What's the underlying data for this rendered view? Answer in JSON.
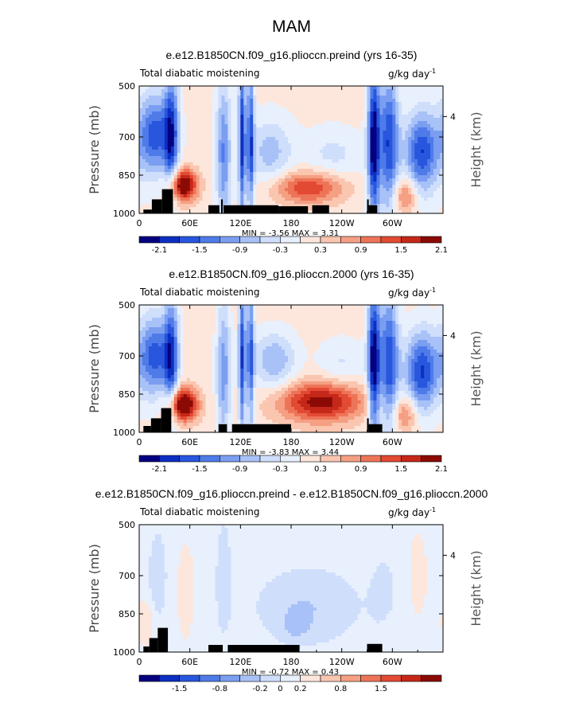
{
  "figure_title": "MAM",
  "chart_data": [
    {
      "type": "heatmap",
      "title": "e.e12.B1850CN.f09_g16.plioccn.preind (yrs 16-35)",
      "subtitle_left": "Total diabatic moistening",
      "units": "g/kg day",
      "units_exp": "-1",
      "ylabel": "Pressure (mb)",
      "ylabel_right": "Height (km)",
      "right_tick_labels": [
        "4"
      ],
      "x_tick_labels": [
        "0",
        "60E",
        "120E",
        "180",
        "120W",
        "60W"
      ],
      "y_tick_labels": [
        "500",
        "700",
        "850",
        "1000"
      ],
      "ylim": [
        1000,
        500
      ],
      "xlim": [
        0,
        360
      ],
      "min_max_text": "MIN =   -3.56   MAX =    3.31",
      "colorbar_labels": [
        "-2.1",
        "-1.5",
        "-0.9",
        "-0.3",
        "0.3",
        "0.9",
        "1.5",
        "2.1"
      ],
      "colorbar_colors": [
        "#05007f",
        "#0d2fc1",
        "#2856dd",
        "#4f7be9",
        "#7b9ef1",
        "#a8c2f8",
        "#cfdefb",
        "#e8f0fd",
        "#fde6dc",
        "#fac6b0",
        "#f59f83",
        "#ee7458",
        "#e24a34",
        "#c52818",
        "#8b0a06"
      ],
      "max_abs": 2.4
    },
    {
      "type": "heatmap",
      "title": "e.e12.B1850CN.f09_g16.plioccn.2000 (yrs 16-35)",
      "subtitle_left": "Total diabatic moistening",
      "units": "g/kg day",
      "units_exp": "-1",
      "ylabel": "Pressure (mb)",
      "ylabel_right": "Height (km)",
      "right_tick_labels": [
        "4"
      ],
      "x_tick_labels": [
        "0",
        "60E",
        "120E",
        "180",
        "120W",
        "60W"
      ],
      "y_tick_labels": [
        "500",
        "700",
        "850",
        "1000"
      ],
      "ylim": [
        1000,
        500
      ],
      "xlim": [
        0,
        360
      ],
      "min_max_text": "MIN =   -3.83   MAX =    3.44",
      "colorbar_labels": [
        "-2.1",
        "-1.5",
        "-0.9",
        "-0.3",
        "0.3",
        "0.9",
        "1.5",
        "2.1"
      ],
      "colorbar_colors": [
        "#05007f",
        "#0d2fc1",
        "#2856dd",
        "#4f7be9",
        "#7b9ef1",
        "#a8c2f8",
        "#cfdefb",
        "#e8f0fd",
        "#fde6dc",
        "#fac6b0",
        "#f59f83",
        "#ee7458",
        "#e24a34",
        "#c52818",
        "#8b0a06"
      ],
      "max_abs": 2.4
    },
    {
      "type": "heatmap",
      "title": "e.e12.B1850CN.f09_g16.plioccn.preind - e.e12.B1850CN.f09_g16.plioccn.2000",
      "subtitle_left": "Total diabatic moistening",
      "units": "g/kg day",
      "units_exp": "-1",
      "ylabel": "Pressure (mb)",
      "ylabel_right": "Height (km)",
      "right_tick_labels": [
        "4"
      ],
      "x_tick_labels": [
        "0",
        "60E",
        "120E",
        "180",
        "120W",
        "60W"
      ],
      "y_tick_labels": [
        "500",
        "700",
        "850",
        "1000"
      ],
      "ylim": [
        1000,
        500
      ],
      "xlim": [
        0,
        360
      ],
      "min_max_text": "MIN =   -0.72   MAX =    0.43",
      "colorbar_labels": [
        "-1.5",
        "-0.8",
        "-0.2",
        "0",
        "0.2",
        "0.8",
        "1.5"
      ],
      "colorbar_colors": [
        "#05007f",
        "#0d2fc1",
        "#2856dd",
        "#4f7be9",
        "#7b9ef1",
        "#a8c2f8",
        "#cfdefb",
        "#e8f0fd",
        "#fde6dc",
        "#fac6b0",
        "#f59f83",
        "#ee7458",
        "#e24a34",
        "#c52818",
        "#8b0a06"
      ],
      "max_abs": 2.0
    }
  ]
}
